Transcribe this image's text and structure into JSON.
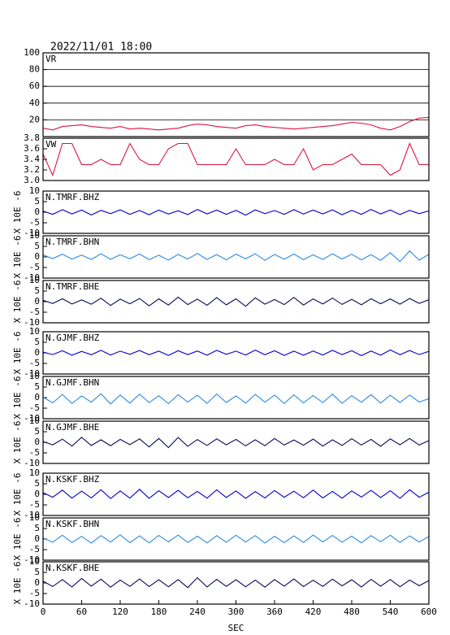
{
  "chart_data": [
    {
      "type": "line",
      "title": "2022/11/01 18:00",
      "label": "VR",
      "color": "#dc143c",
      "grid": true,
      "ylim": [
        0,
        100
      ],
      "yticks": [
        20,
        40,
        60,
        80,
        100
      ],
      "x": [
        0,
        15,
        30,
        45,
        60,
        75,
        90,
        105,
        120,
        135,
        150,
        165,
        180,
        195,
        210,
        225,
        240,
        255,
        270,
        285,
        300,
        315,
        330,
        345,
        360,
        375,
        390,
        405,
        420,
        435,
        450,
        465,
        480,
        495,
        510,
        525,
        540,
        555,
        570,
        585,
        600
      ],
      "values": [
        10,
        8,
        12,
        13,
        14,
        12,
        11,
        10,
        12,
        9,
        10,
        9,
        8,
        9,
        10,
        13,
        15,
        14,
        12,
        11,
        10,
        13,
        14,
        12,
        11,
        10,
        9,
        10,
        11,
        12,
        13,
        15,
        17,
        16,
        14,
        10,
        8,
        12,
        18,
        22,
        23
      ]
    },
    {
      "type": "line",
      "label": "VW",
      "color": "#dc143c",
      "grid": false,
      "ylim": [
        3,
        3.8
      ],
      "yticks": [
        {
          "value": 3,
          "label": "3.0"
        },
        3.2,
        3.4,
        3.6,
        3.8
      ],
      "x": [
        0,
        15,
        30,
        45,
        60,
        75,
        90,
        105,
        120,
        135,
        150,
        165,
        180,
        195,
        210,
        225,
        240,
        255,
        270,
        285,
        300,
        315,
        330,
        345,
        360,
        375,
        390,
        405,
        420,
        435,
        450,
        465,
        480,
        495,
        510,
        525,
        540,
        555,
        570,
        585,
        600
      ],
      "values": [
        3.5,
        3.1,
        3.7,
        3.7,
        3.3,
        3.3,
        3.4,
        3.3,
        3.3,
        3.7,
        3.4,
        3.3,
        3.3,
        3.6,
        3.7,
        3.7,
        3.3,
        3.3,
        3.3,
        3.3,
        3.6,
        3.3,
        3.3,
        3.3,
        3.4,
        3.3,
        3.3,
        3.6,
        3.2,
        3.3,
        3.3,
        3.4,
        3.5,
        3.3,
        3.3,
        3.3,
        3.1,
        3.2,
        3.7,
        3.3,
        3.3
      ]
    },
    {
      "type": "line",
      "label": "N.TMRF.BHZ",
      "ylabel": "X 10E -6",
      "color": "#0000cd",
      "grid": false,
      "ylim": [
        -10,
        10
      ],
      "yticks": [
        -10,
        -5,
        0,
        5,
        10
      ],
      "x": [
        0,
        15,
        30,
        45,
        60,
        75,
        90,
        105,
        120,
        135,
        150,
        165,
        180,
        195,
        210,
        225,
        240,
        255,
        270,
        285,
        300,
        315,
        330,
        345,
        360,
        375,
        390,
        405,
        420,
        435,
        450,
        465,
        480,
        495,
        510,
        525,
        540,
        555,
        570,
        585,
        600
      ],
      "values": [
        0.5,
        -1,
        1.2,
        -0.8,
        1,
        -1.3,
        0.9,
        -0.7,
        1.1,
        -1,
        0.8,
        -1.2,
        1,
        -0.9,
        0.7,
        -1.1,
        1.3,
        -0.8,
        1,
        -1,
        0.9,
        -1.4,
        1.1,
        -0.7,
        0.8,
        -1,
        1.2,
        -0.9,
        1,
        -0.8,
        1.1,
        -1.2,
        0.9,
        -1,
        1.3,
        -0.8,
        1,
        -1.1,
        0.9,
        -0.7,
        0.6
      ]
    },
    {
      "type": "line",
      "label": "N.TMRF.BHN",
      "ylabel": "X 10E -6",
      "color": "#2b8be6",
      "grid": false,
      "ylim": [
        -10,
        10
      ],
      "yticks": [
        -10,
        -5,
        0,
        5,
        10
      ],
      "x": [
        0,
        15,
        30,
        45,
        60,
        75,
        90,
        105,
        120,
        135,
        150,
        165,
        180,
        195,
        210,
        225,
        240,
        255,
        270,
        285,
        300,
        315,
        330,
        345,
        360,
        375,
        390,
        405,
        420,
        435,
        450,
        465,
        480,
        495,
        510,
        525,
        540,
        555,
        570,
        585,
        600
      ],
      "values": [
        1,
        -0.8,
        1.3,
        -1,
        0.9,
        -1.2,
        1.5,
        -1.1,
        1,
        -0.9,
        1.4,
        -1.3,
        0.8,
        -1.5,
        1.2,
        -1,
        1.6,
        -1.2,
        1.1,
        -1.4,
        1.3,
        -0.9,
        1.5,
        -1.6,
        1.2,
        -1.1,
        1.4,
        -1.3,
        1,
        -1.2,
        1.5,
        -1,
        1.3,
        -1.4,
        1.1,
        -1.6,
        2,
        -2.2,
        2.8,
        -1.5,
        1.2
      ]
    },
    {
      "type": "line",
      "label": "N.TMRF.BHE",
      "ylabel": "X 10E -6",
      "color": "#0a0a5a",
      "grid": false,
      "ylim": [
        -10,
        10
      ],
      "yticks": [
        -10,
        -5,
        0,
        5,
        10
      ],
      "x": [
        0,
        15,
        30,
        45,
        60,
        75,
        90,
        105,
        120,
        135,
        150,
        165,
        180,
        195,
        210,
        225,
        240,
        255,
        270,
        285,
        300,
        315,
        330,
        345,
        360,
        375,
        390,
        405,
        420,
        435,
        450,
        465,
        480,
        495,
        510,
        525,
        540,
        555,
        570,
        585,
        600
      ],
      "values": [
        0.6,
        -0.9,
        1.4,
        -1.1,
        0.8,
        -1.2,
        1.6,
        -1.8,
        1.2,
        -1,
        1.5,
        -2,
        1.3,
        -1.6,
        2.1,
        -1.4,
        1.2,
        -1.7,
        1.9,
        -1.5,
        1.3,
        -2.2,
        1.8,
        -1.2,
        1,
        -1.4,
        2,
        -1.6,
        1.3,
        -1.1,
        1.7,
        -1.3,
        1.1,
        -1.5,
        1.4,
        -1,
        1.3,
        -1.2,
        1.5,
        -0.8,
        0.9
      ]
    },
    {
      "type": "line",
      "label": "N.GJMF.BHZ",
      "ylabel": "X 10E -6",
      "color": "#0000cd",
      "grid": false,
      "ylim": [
        -10,
        10
      ],
      "yticks": [
        -10,
        -5,
        0,
        5,
        10
      ],
      "x": [
        0,
        15,
        30,
        45,
        60,
        75,
        90,
        105,
        120,
        135,
        150,
        165,
        180,
        195,
        210,
        225,
        240,
        255,
        270,
        285,
        300,
        315,
        330,
        345,
        360,
        375,
        390,
        405,
        420,
        435,
        450,
        465,
        480,
        495,
        510,
        525,
        540,
        555,
        570,
        585,
        600
      ],
      "values": [
        0.4,
        -0.8,
        1,
        -1.1,
        0.7,
        -0.9,
        1.2,
        -1,
        0.8,
        -0.7,
        1.1,
        -0.9,
        0.8,
        -1.2,
        1,
        -0.8,
        0.9,
        -1.1,
        1.2,
        -0.7,
        0.8,
        -1,
        1.3,
        -0.9,
        1,
        -1.2,
        0.8,
        -1.1,
        0.9,
        -1,
        1.2,
        -0.8,
        1,
        -1.3,
        0.9,
        -1.1,
        1.4,
        -0.9,
        1.1,
        -0.8,
        0.7
      ]
    },
    {
      "type": "line",
      "label": "N.GJMF.BHN",
      "ylabel": "X 10E -6",
      "color": "#2b8be6",
      "grid": false,
      "ylim": [
        -10,
        10
      ],
      "yticks": [
        -10,
        -5,
        0,
        5,
        10
      ],
      "x": [
        0,
        15,
        30,
        45,
        60,
        75,
        90,
        105,
        120,
        135,
        150,
        165,
        180,
        195,
        210,
        225,
        240,
        255,
        270,
        285,
        300,
        315,
        330,
        345,
        360,
        375,
        390,
        405,
        420,
        435,
        450,
        465,
        480,
        495,
        510,
        525,
        540,
        555,
        570,
        585,
        600
      ],
      "values": [
        0.2,
        -2.5,
        1.5,
        -2.8,
        0.8,
        -2.2,
        1.8,
        -3,
        1.2,
        -2.6,
        1.6,
        -2.4,
        0.9,
        -2.9,
        1.4,
        -2.1,
        1.1,
        -2.7,
        1.7,
        -2.3,
        0.8,
        -2.6,
        1.5,
        -2.2,
        1.2,
        -2.8,
        1.3,
        -2.5,
        1,
        -2.4,
        1.6,
        -2.7,
        0.9,
        -2.2,
        1.4,
        -2.6,
        1.1,
        -2.3,
        1.2,
        -2.1,
        -0.5
      ]
    },
    {
      "type": "line",
      "label": "N.GJMF.BHE",
      "ylabel": "X 10E -6",
      "color": "#0a0a5a",
      "grid": false,
      "ylim": [
        -10,
        10
      ],
      "yticks": [
        -10,
        -5,
        0,
        5,
        10
      ],
      "x": [
        0,
        15,
        30,
        45,
        60,
        75,
        90,
        105,
        120,
        135,
        150,
        165,
        180,
        195,
        210,
        225,
        240,
        255,
        270,
        285,
        300,
        315,
        330,
        345,
        360,
        375,
        390,
        405,
        420,
        435,
        450,
        465,
        480,
        495,
        510,
        525,
        540,
        555,
        570,
        585,
        600
      ],
      "values": [
        0.3,
        -1.2,
        1.5,
        -1.8,
        2.4,
        -1.5,
        1.2,
        -1.6,
        1.4,
        -1.1,
        1.6,
        -2.2,
        1.8,
        -2.5,
        2.3,
        -1.9,
        1.3,
        -1.5,
        1.6,
        -1.2,
        1.4,
        -1.7,
        1.2,
        -1.6,
        1.8,
        -1.3,
        1.1,
        -1.4,
        1.5,
        -1.8,
        1.2,
        -1.5,
        1.7,
        -1.3,
        1.4,
        -1.9,
        1.6,
        -1.2,
        1.8,
        -1.3,
        0.8
      ]
    },
    {
      "type": "line",
      "label": "N.KSKF.BHZ",
      "ylabel": "X 10E -6",
      "color": "#0000cd",
      "grid": false,
      "ylim": [
        -10,
        10
      ],
      "yticks": [
        -10,
        -5,
        0,
        5,
        10
      ],
      "x": [
        0,
        15,
        30,
        45,
        60,
        75,
        90,
        105,
        120,
        135,
        150,
        165,
        180,
        195,
        210,
        225,
        240,
        255,
        270,
        285,
        300,
        315,
        330,
        345,
        360,
        375,
        390,
        405,
        420,
        435,
        450,
        465,
        480,
        495,
        510,
        525,
        540,
        555,
        570,
        585,
        600
      ],
      "values": [
        0.8,
        -1.4,
        2,
        -1.8,
        1.5,
        -1.7,
        2.2,
        -2,
        1.6,
        -1.8,
        2.4,
        -1.9,
        1.7,
        -1.5,
        1.9,
        -1.6,
        1.4,
        -1.8,
        2.1,
        -1.5,
        1.6,
        -1.9,
        1.3,
        -1.7,
        1.8,
        -1.4,
        1.5,
        -1.6,
        2,
        -1.7,
        1.4,
        -1.8,
        1.6,
        -1.3,
        1.9,
        -1.5,
        1.7,
        -1.9,
        2.2,
        -1.4,
        1
      ]
    },
    {
      "type": "line",
      "label": "N.KSKF.BHN",
      "ylabel": "X 10E -6",
      "color": "#2b8be6",
      "grid": false,
      "ylim": [
        -10,
        10
      ],
      "yticks": [
        -10,
        -5,
        0,
        5,
        10
      ],
      "x": [
        0,
        15,
        30,
        45,
        60,
        75,
        90,
        105,
        120,
        135,
        150,
        165,
        180,
        195,
        210,
        225,
        240,
        255,
        270,
        285,
        300,
        315,
        330,
        345,
        360,
        375,
        390,
        405,
        420,
        435,
        450,
        465,
        480,
        495,
        510,
        525,
        540,
        555,
        570,
        585,
        600
      ],
      "values": [
        0.5,
        -1.5,
        1.8,
        -1.6,
        1.3,
        -1.9,
        1.6,
        -1.4,
        2,
        -1.7,
        1.5,
        -1.8,
        1.7,
        -1.3,
        1.9,
        -1.6,
        1.4,
        -1.8,
        1.6,
        -1.5,
        1.8,
        -1.4,
        1.6,
        -1.9,
        1.3,
        -1.7,
        1.5,
        -1.6,
        1.9,
        -1.4,
        1.7,
        -1.5,
        1.4,
        -1.8,
        1.6,
        -1.3,
        1.8,
        -1.6,
        1.5,
        -1.4,
        1.2
      ]
    },
    {
      "type": "line",
      "label": "N.KSKF.BHE",
      "ylabel": "X 10E -6",
      "color": "#0a0a5a",
      "grid": false,
      "ylim": [
        -10,
        10
      ],
      "yticks": [
        -10,
        -5,
        0,
        5,
        10
      ],
      "xlim": [
        0,
        600
      ],
      "xticks": [
        0,
        60,
        120,
        180,
        240,
        300,
        360,
        420,
        480,
        540,
        600
      ],
      "xlabel": "SEC",
      "x": [
        0,
        15,
        30,
        45,
        60,
        75,
        90,
        105,
        120,
        135,
        150,
        165,
        180,
        195,
        210,
        225,
        240,
        255,
        270,
        285,
        300,
        315,
        330,
        345,
        360,
        375,
        390,
        405,
        420,
        435,
        450,
        465,
        480,
        495,
        510,
        525,
        540,
        555,
        570,
        585,
        600
      ],
      "values": [
        0.9,
        -1.7,
        1.6,
        -1.9,
        2.1,
        -1.5,
        1.8,
        -2,
        1.4,
        -1.6,
        1.9,
        -1.7,
        1.5,
        -1.8,
        1.6,
        -2.2,
        2.5,
        -1.9,
        1.7,
        -1.6,
        1.5,
        -1.8,
        1.4,
        -2,
        1.6,
        -1.5,
        1.9,
        -1.7,
        1.3,
        -1.6,
        1.8,
        -1.4,
        1.5,
        -1.9,
        1.7,
        -1.5,
        1.6,
        -1.8,
        1.4,
        -1.3,
        1.1
      ]
    }
  ]
}
